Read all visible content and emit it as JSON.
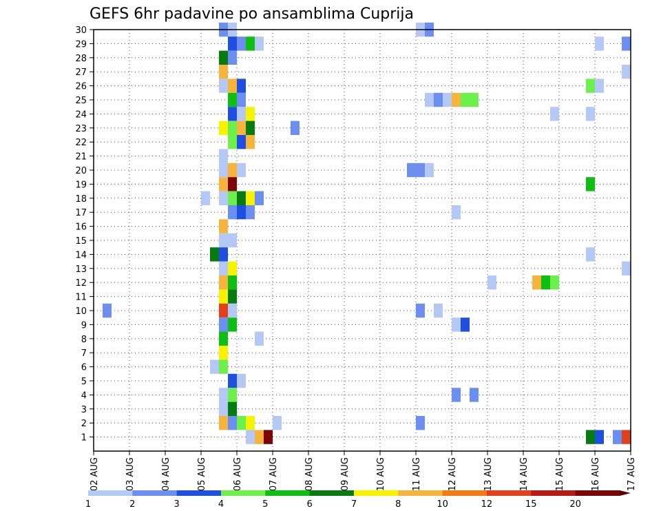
{
  "chart_data": {
    "type": "heatmap",
    "title": "GEFS 6hr padavine po ansamblima Cuprija",
    "xlabel": "",
    "ylabel": "",
    "x_tick_labels": [
      "02 AUG",
      "03 AUG",
      "04 AUG",
      "05 AUG",
      "06 AUG",
      "07 AUG",
      "08 AUG",
      "09 AUG",
      "10 AUG",
      "11 AUG",
      "12 AUG",
      "13 AUG",
      "14 AUG",
      "15 AUG",
      "16 AUG",
      "17 AUG"
    ],
    "x_unit": "6-hour step from 02 AUG 00Z",
    "x_range": [
      0,
      60
    ],
    "y_tick_labels": [
      "1",
      "2",
      "3",
      "4",
      "5",
      "6",
      "7",
      "8",
      "9",
      "10",
      "11",
      "12",
      "13",
      "14",
      "15",
      "16",
      "17",
      "18",
      "19",
      "20",
      "21",
      "22",
      "23",
      "24",
      "25",
      "26",
      "27",
      "28",
      "29",
      "30"
    ],
    "y_range": [
      0,
      30
    ],
    "grid": true,
    "legend_placement": "bottom",
    "color_levels": [
      {
        "label": "1",
        "color": "#b4c8f5"
      },
      {
        "label": "2",
        "color": "#6a8ff0"
      },
      {
        "label": "3",
        "color": "#1f4fe0"
      },
      {
        "label": "4",
        "color": "#6cf04c"
      },
      {
        "label": "5",
        "color": "#0fbe12"
      },
      {
        "label": "6",
        "color": "#077a10"
      },
      {
        "label": "7",
        "color": "#f6f200"
      },
      {
        "label": "8",
        "color": "#f6b43c"
      },
      {
        "label": "10",
        "color": "#f57a12"
      },
      {
        "label": "12",
        "color": "#e1401a"
      },
      {
        "label": "15",
        "color": "#b81818"
      },
      {
        "label": "20",
        "color": "#7a0408"
      }
    ],
    "color_end": "#600000",
    "cells": [
      [
        30,
        0,
        14,
        1
      ],
      [
        30,
        1,
        15,
        0
      ],
      [
        30,
        2,
        36,
        0
      ],
      [
        30,
        3,
        37,
        1
      ],
      [
        29,
        0,
        15,
        1
      ],
      [
        29,
        1,
        15,
        2
      ],
      [
        29,
        2,
        16,
        1
      ],
      [
        29,
        3,
        17,
        4
      ],
      [
        29,
        4,
        18,
        0
      ],
      [
        29,
        5,
        56,
        0
      ],
      [
        29,
        6,
        59,
        1
      ],
      [
        28,
        0,
        14,
        5
      ],
      [
        28,
        1,
        15,
        1
      ],
      [
        27,
        0,
        14,
        7
      ],
      [
        27,
        1,
        59,
        0
      ],
      [
        26,
        0,
        14,
        0
      ],
      [
        26,
        1,
        15,
        7
      ],
      [
        26,
        2,
        16,
        2
      ],
      [
        26,
        3,
        55,
        3
      ],
      [
        26,
        4,
        56,
        0
      ],
      [
        25,
        0,
        15,
        4
      ],
      [
        25,
        1,
        16,
        1
      ],
      [
        25,
        2,
        37,
        0
      ],
      [
        25,
        3,
        38,
        1
      ],
      [
        25,
        4,
        39,
        0
      ],
      [
        25,
        5,
        40,
        7
      ],
      [
        25,
        6,
        41,
        3
      ],
      [
        25,
        7,
        42,
        3
      ],
      [
        24,
        0,
        15,
        2
      ],
      [
        24,
        1,
        16,
        0
      ],
      [
        24,
        2,
        17,
        6
      ],
      [
        24,
        3,
        51,
        0
      ],
      [
        24,
        4,
        55,
        0
      ],
      [
        23,
        0,
        14,
        6
      ],
      [
        23,
        1,
        15,
        3
      ],
      [
        23,
        2,
        16,
        7
      ],
      [
        23,
        3,
        17,
        5
      ],
      [
        23,
        4,
        22,
        1
      ],
      [
        22,
        0,
        15,
        3
      ],
      [
        22,
        1,
        16,
        2
      ],
      [
        22,
        2,
        17,
        7
      ],
      [
        21,
        0,
        14,
        0
      ],
      [
        20,
        0,
        14,
        0
      ],
      [
        20,
        1,
        15,
        7
      ],
      [
        20,
        2,
        16,
        0
      ],
      [
        20,
        3,
        35,
        1
      ],
      [
        20,
        4,
        36,
        1
      ],
      [
        20,
        5,
        37,
        0
      ],
      [
        19,
        0,
        14,
        7
      ],
      [
        19,
        1,
        15,
        11
      ],
      [
        19,
        2,
        55,
        4
      ],
      [
        18,
        0,
        12,
        0
      ],
      [
        18,
        1,
        14,
        0
      ],
      [
        18,
        2,
        15,
        3
      ],
      [
        18,
        3,
        16,
        5
      ],
      [
        18,
        4,
        17,
        6
      ],
      [
        18,
        5,
        18,
        1
      ],
      [
        17,
        0,
        15,
        1
      ],
      [
        17,
        1,
        16,
        2
      ],
      [
        17,
        2,
        17,
        1
      ],
      [
        17,
        3,
        40,
        0
      ],
      [
        16,
        0,
        14,
        7
      ],
      [
        15,
        0,
        14,
        0
      ],
      [
        15,
        1,
        15,
        0
      ],
      [
        14,
        0,
        13,
        5
      ],
      [
        14,
        1,
        14,
        2
      ],
      [
        14,
        2,
        55,
        0
      ],
      [
        13,
        0,
        14,
        0
      ],
      [
        13,
        1,
        15,
        6
      ],
      [
        13,
        2,
        59,
        0
      ],
      [
        12,
        0,
        14,
        7
      ],
      [
        12,
        1,
        15,
        4
      ],
      [
        12,
        2,
        44,
        0
      ],
      [
        12,
        3,
        49,
        7
      ],
      [
        12,
        4,
        50,
        4
      ],
      [
        12,
        5,
        51,
        3
      ],
      [
        11,
        0,
        14,
        6
      ],
      [
        11,
        1,
        15,
        5
      ],
      [
        10,
        0,
        1,
        1
      ],
      [
        10,
        1,
        14,
        9
      ],
      [
        10,
        2,
        15,
        0
      ],
      [
        10,
        3,
        36,
        1
      ],
      [
        10,
        4,
        38,
        0
      ],
      [
        9,
        0,
        14,
        1
      ],
      [
        9,
        1,
        15,
        4
      ],
      [
        9,
        2,
        40,
        0
      ],
      [
        9,
        3,
        41,
        2
      ],
      [
        8,
        0,
        14,
        4
      ],
      [
        8,
        1,
        18,
        0
      ],
      [
        7,
        0,
        14,
        6
      ],
      [
        6,
        0,
        13,
        0
      ],
      [
        6,
        1,
        14,
        3
      ],
      [
        5,
        0,
        15,
        2
      ],
      [
        5,
        1,
        16,
        0
      ],
      [
        4,
        0,
        14,
        0
      ],
      [
        4,
        1,
        15,
        3
      ],
      [
        4,
        2,
        40,
        1
      ],
      [
        4,
        3,
        42,
        1
      ],
      [
        3,
        0,
        14,
        0
      ],
      [
        3,
        1,
        15,
        5
      ],
      [
        2,
        0,
        14,
        7
      ],
      [
        2,
        1,
        15,
        1
      ],
      [
        2,
        2,
        16,
        3
      ],
      [
        2,
        3,
        17,
        6
      ],
      [
        2,
        4,
        20,
        0
      ],
      [
        2,
        5,
        36,
        1
      ],
      [
        1,
        0,
        17,
        0
      ],
      [
        1,
        1,
        18,
        7
      ],
      [
        1,
        2,
        19,
        11
      ],
      [
        1,
        3,
        55,
        5
      ],
      [
        1,
        4,
        56,
        2
      ],
      [
        1,
        5,
        58,
        1
      ],
      [
        1,
        6,
        59,
        9
      ]
    ]
  }
}
